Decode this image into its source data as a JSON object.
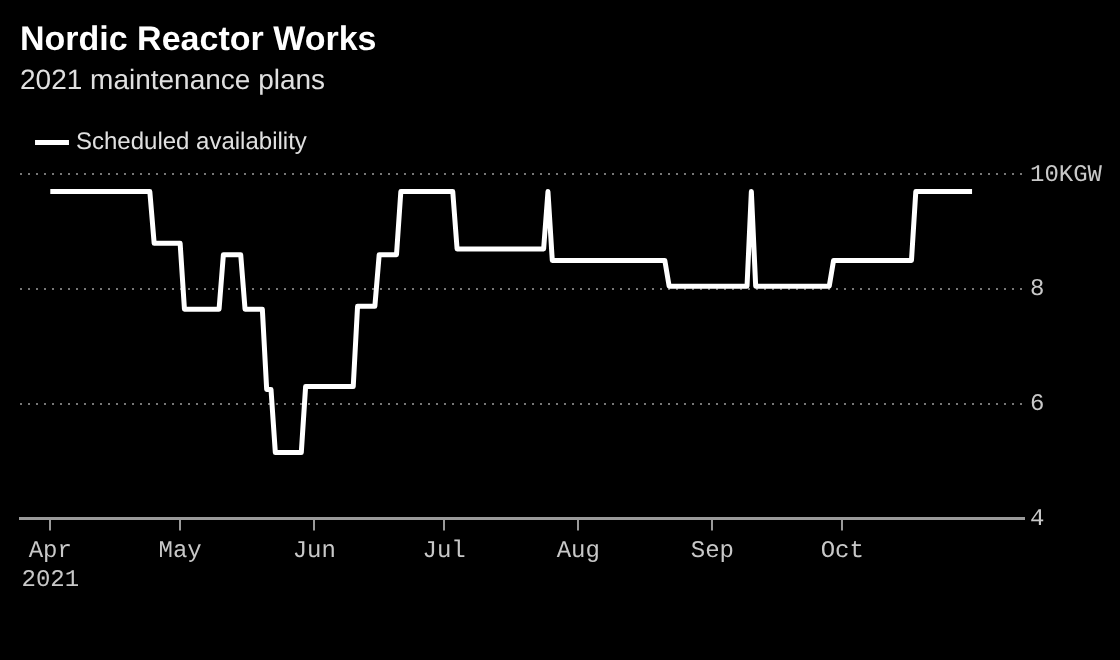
{
  "chart_data": {
    "type": "line",
    "title": "Nordic Reactor Works",
    "subtitle": "2021 maintenance plans",
    "x": [
      "2021-04-01",
      "2021-04-24",
      "2021-04-25",
      "2021-05-01",
      "2021-05-02",
      "2021-05-10",
      "2021-05-11",
      "2021-05-15",
      "2021-05-16",
      "2021-05-20",
      "2021-05-21",
      "2021-05-22",
      "2021-05-23",
      "2021-05-29",
      "2021-05-30",
      "2021-06-10",
      "2021-06-11",
      "2021-06-15",
      "2021-06-16",
      "2021-06-20",
      "2021-06-21",
      "2021-07-03",
      "2021-07-04",
      "2021-07-24",
      "2021-07-25",
      "2021-07-26",
      "2021-08-21",
      "2021-08-22",
      "2021-09-09",
      "2021-09-10",
      "2021-09-11",
      "2021-09-28",
      "2021-09-29",
      "2021-10-17",
      "2021-10-18",
      "2021-10-31"
    ],
    "series": [
      {
        "name": "Scheduled availability",
        "color": "#ffffff",
        "values": [
          9.7,
          9.7,
          8.8,
          8.8,
          7.65,
          7.65,
          8.6,
          8.6,
          7.65,
          7.65,
          6.25,
          6.25,
          5.15,
          5.15,
          6.3,
          6.3,
          7.7,
          7.7,
          8.6,
          8.6,
          9.7,
          9.7,
          8.7,
          8.7,
          9.7,
          8.5,
          8.5,
          8.05,
          8.05,
          9.7,
          8.05,
          8.05,
          8.5,
          8.5,
          9.7,
          9.7
        ]
      }
    ],
    "xlim": [
      "2021-03-25",
      "2021-11-12"
    ],
    "xticks": [
      {
        "value": "2021-04-01",
        "label": "Apr 2021"
      },
      {
        "value": "2021-05-01",
        "label": "May"
      },
      {
        "value": "2021-06-01",
        "label": "Jun"
      },
      {
        "value": "2021-07-01",
        "label": "Jul"
      },
      {
        "value": "2021-08-01",
        "label": "Aug"
      },
      {
        "value": "2021-09-01",
        "label": "Sep"
      },
      {
        "value": "2021-10-01",
        "label": "Oct"
      }
    ],
    "ylim": [
      4,
      10
    ],
    "yticks": [
      4,
      6,
      8,
      {
        "value": 10,
        "label": "10KGW"
      }
    ],
    "grid": "y",
    "legend": "top left",
    "marker": "none",
    "line_style": "solid"
  }
}
